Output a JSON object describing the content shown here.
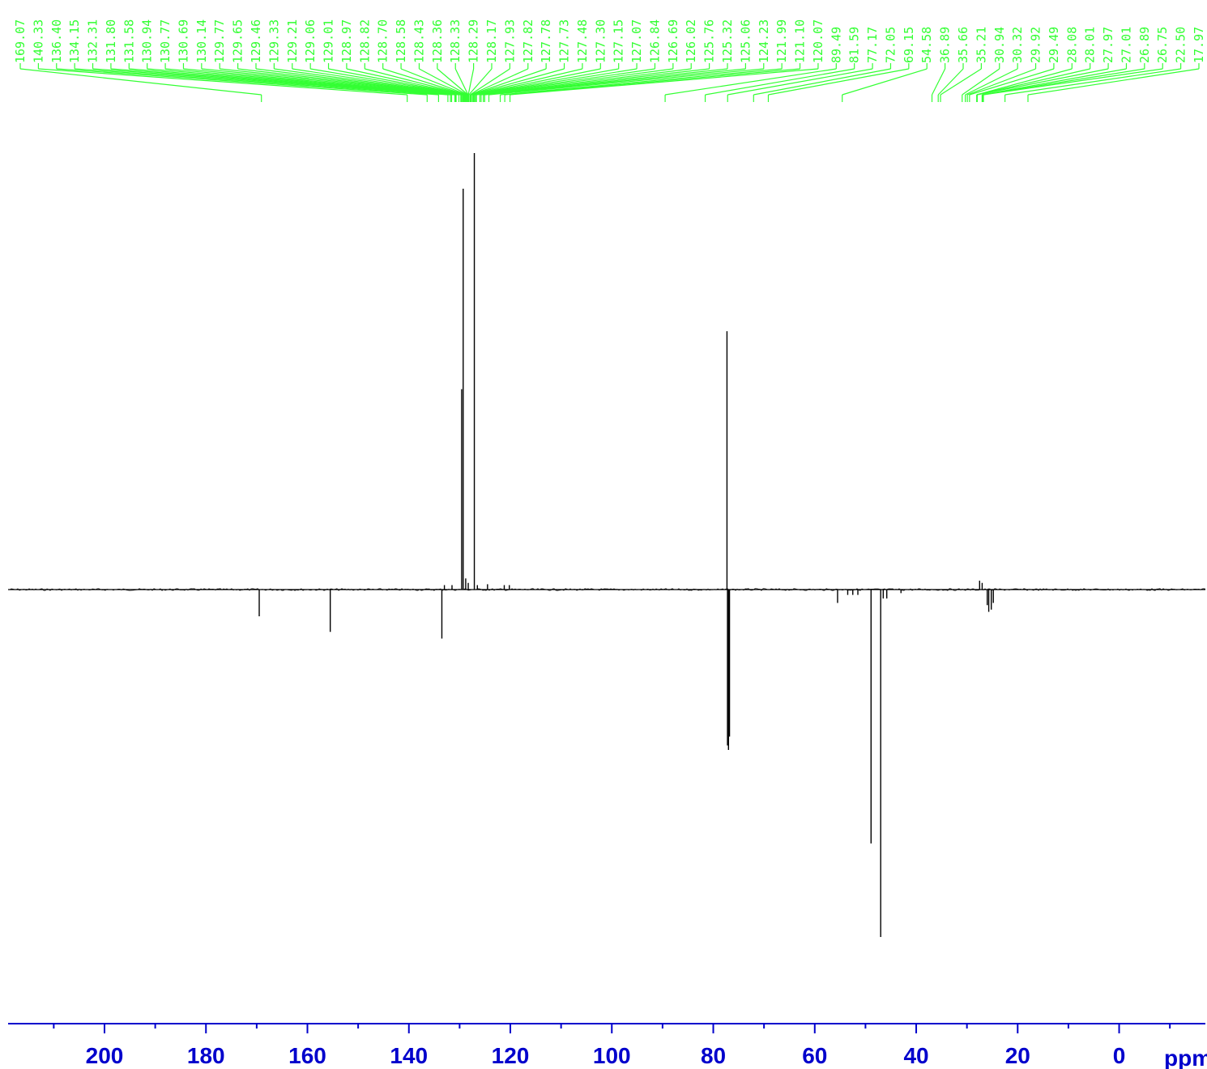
{
  "chart_data": {
    "type": "line",
    "title": "",
    "xlabel": "ppm",
    "x_axis": {
      "reversed": true,
      "range": [
        219,
        -17
      ],
      "major_ticks": [
        200,
        180,
        160,
        140,
        120,
        100,
        80,
        60,
        40,
        20,
        0
      ],
      "minor_step": 10
    },
    "peak_labels": [
      "169.07",
      "140.33",
      "136.40",
      "134.15",
      "132.31",
      "131.80",
      "131.58",
      "130.94",
      "130.77",
      "130.69",
      "130.14",
      "129.77",
      "129.65",
      "129.46",
      "129.33",
      "129.21",
      "129.06",
      "129.01",
      "128.97",
      "128.82",
      "128.70",
      "128.58",
      "128.43",
      "128.36",
      "128.33",
      "128.29",
      "128.17",
      "127.93",
      "127.82",
      "127.78",
      "127.73",
      "127.48",
      "127.30",
      "127.15",
      "127.07",
      "126.84",
      "126.69",
      "126.02",
      "125.76",
      "125.32",
      "125.06",
      "124.23",
      "121.99",
      "121.10",
      "120.07",
      "89.49",
      "81.59",
      "77.17",
      "72.05",
      "69.15",
      "54.58",
      "36.89",
      "35.66",
      "35.21",
      "30.94",
      "30.32",
      "29.92",
      "29.49",
      "28.08",
      "28.01",
      "27.97",
      "27.01",
      "26.89",
      "26.75",
      "22.50",
      "17.97"
    ],
    "series": [
      {
        "baseline": 0,
        "peaks": [
          {
            "ppm": 169.5,
            "intensity": -0.06
          },
          {
            "ppm": 155.5,
            "intensity": -0.095
          },
          {
            "ppm": 133.5,
            "intensity": -0.11
          },
          {
            "ppm": 133.0,
            "intensity": 0.01
          },
          {
            "ppm": 131.5,
            "intensity": 0.01
          },
          {
            "ppm": 129.6,
            "intensity": 0.45
          },
          {
            "ppm": 129.3,
            "intensity": 0.9
          },
          {
            "ppm": 128.8,
            "intensity": 0.025
          },
          {
            "ppm": 128.3,
            "intensity": 0.015
          },
          {
            "ppm": 127.1,
            "intensity": 0.98
          },
          {
            "ppm": 126.5,
            "intensity": 0.01
          },
          {
            "ppm": 124.5,
            "intensity": 0.012
          },
          {
            "ppm": 121.2,
            "intensity": 0.01
          },
          {
            "ppm": 120.2,
            "intensity": 0.01
          },
          {
            "ppm": 77.3,
            "intensity": 0.58
          },
          {
            "ppm": 77.2,
            "intensity": -0.35
          },
          {
            "ppm": 77.0,
            "intensity": -0.36
          },
          {
            "ppm": 76.8,
            "intensity": -0.33
          },
          {
            "ppm": 55.5,
            "intensity": -0.03
          },
          {
            "ppm": 53.5,
            "intensity": -0.012
          },
          {
            "ppm": 52.5,
            "intensity": -0.012
          },
          {
            "ppm": 51.5,
            "intensity": -0.012
          },
          {
            "ppm": 48.9,
            "intensity": -0.57
          },
          {
            "ppm": 47.0,
            "intensity": -0.78
          },
          {
            "ppm": 46.5,
            "intensity": -0.02
          },
          {
            "ppm": 45.8,
            "intensity": -0.02
          },
          {
            "ppm": 43.0,
            "intensity": -0.008
          },
          {
            "ppm": 27.5,
            "intensity": 0.02
          },
          {
            "ppm": 27.0,
            "intensity": 0.015
          },
          {
            "ppm": 26.0,
            "intensity": -0.035
          },
          {
            "ppm": 25.7,
            "intensity": -0.05
          },
          {
            "ppm": 25.2,
            "intensity": -0.045
          },
          {
            "ppm": 24.8,
            "intensity": -0.03
          }
        ]
      }
    ],
    "colors": {
      "spectrum": "#000000",
      "axis": "#0000cc",
      "peak_labels": "#33ff33"
    },
    "grid": false
  }
}
